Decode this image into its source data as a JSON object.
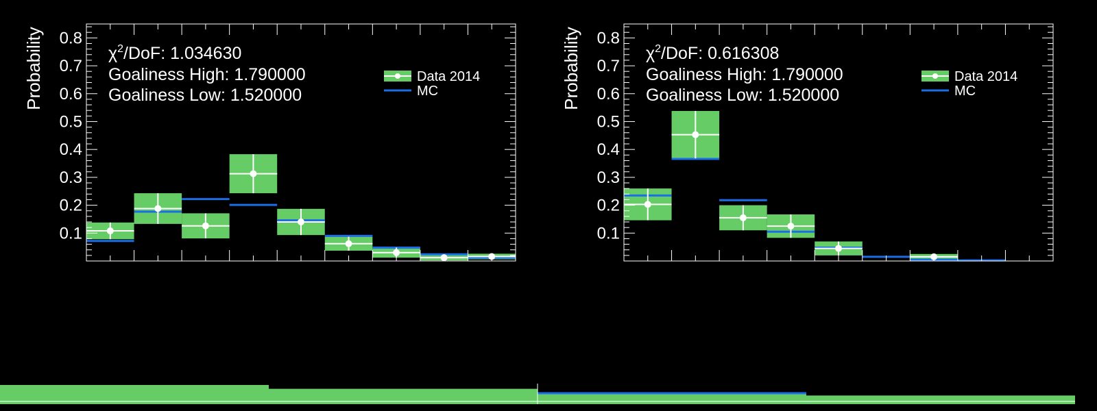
{
  "colors": {
    "background": "#000000",
    "data_fill": "#66cc66",
    "marker": "#ffffff",
    "mc_line": "#1a6ee6",
    "axis": "#ffffff"
  },
  "chart_data": [
    {
      "type": "bar",
      "ylabel": "Probability",
      "ylim": [
        0,
        0.85
      ],
      "yticks": [
        "0.1",
        "0.2",
        "0.3",
        "0.4",
        "0.5",
        "0.6",
        "0.7",
        "0.8"
      ],
      "info": {
        "chi2_symbol": "χ",
        "chi2_exp": "2",
        "chi2_rest": "/DoF: 1.034630",
        "high": "Goaliness High: 1.790000",
        "low": "Goaliness Low: 1.520000"
      },
      "legend": {
        "data": "Data 2014",
        "mc": "MC",
        "position": "top-right"
      },
      "series": [
        {
          "name": "Data 2014",
          "values": [
            0.108,
            0.188,
            0.126,
            0.313,
            0.14,
            0.062,
            0.03,
            0.012,
            0.016
          ],
          "errors": [
            0.03,
            0.055,
            0.045,
            0.07,
            0.047,
            0.025,
            0.018,
            0.01,
            0.01
          ]
        },
        {
          "name": "MC",
          "values": [
            0.072,
            0.177,
            0.222,
            0.201,
            0.146,
            0.09,
            0.048,
            0.024,
            0.012
          ]
        }
      ]
    },
    {
      "type": "bar",
      "ylabel": "Probability",
      "ylim": [
        0,
        0.85
      ],
      "yticks": [
        "0.1",
        "0.2",
        "0.3",
        "0.4",
        "0.5",
        "0.6",
        "0.7",
        "0.8"
      ],
      "info": {
        "chi2_symbol": "χ",
        "chi2_exp": "2",
        "chi2_rest": "/DoF: 0.616308",
        "high": "Goaliness High: 1.790000",
        "low": "Goaliness Low: 1.520000"
      },
      "legend": {
        "data": "Data 2014",
        "mc": "MC",
        "position": "top-right"
      },
      "series": [
        {
          "name": "Data 2014",
          "values": [
            0.203,
            0.453,
            0.155,
            0.125,
            0.045,
            null,
            0.015,
            null,
            null
          ],
          "errors": [
            0.057,
            0.085,
            0.045,
            0.042,
            0.025,
            null,
            0.01,
            null,
            null
          ]
        },
        {
          "name": "MC",
          "values": [
            0.235,
            0.366,
            0.218,
            0.105,
            0.048,
            0.015,
            0.005,
            0.002,
            null
          ]
        }
      ]
    }
  ],
  "bottom_strip": {
    "segments": [
      {
        "label": "",
        "level": 1.0
      },
      {
        "label": "",
        "level": 0.8
      },
      {
        "label": "",
        "level": 0.55
      },
      {
        "label": "",
        "level": 0.45
      }
    ]
  }
}
